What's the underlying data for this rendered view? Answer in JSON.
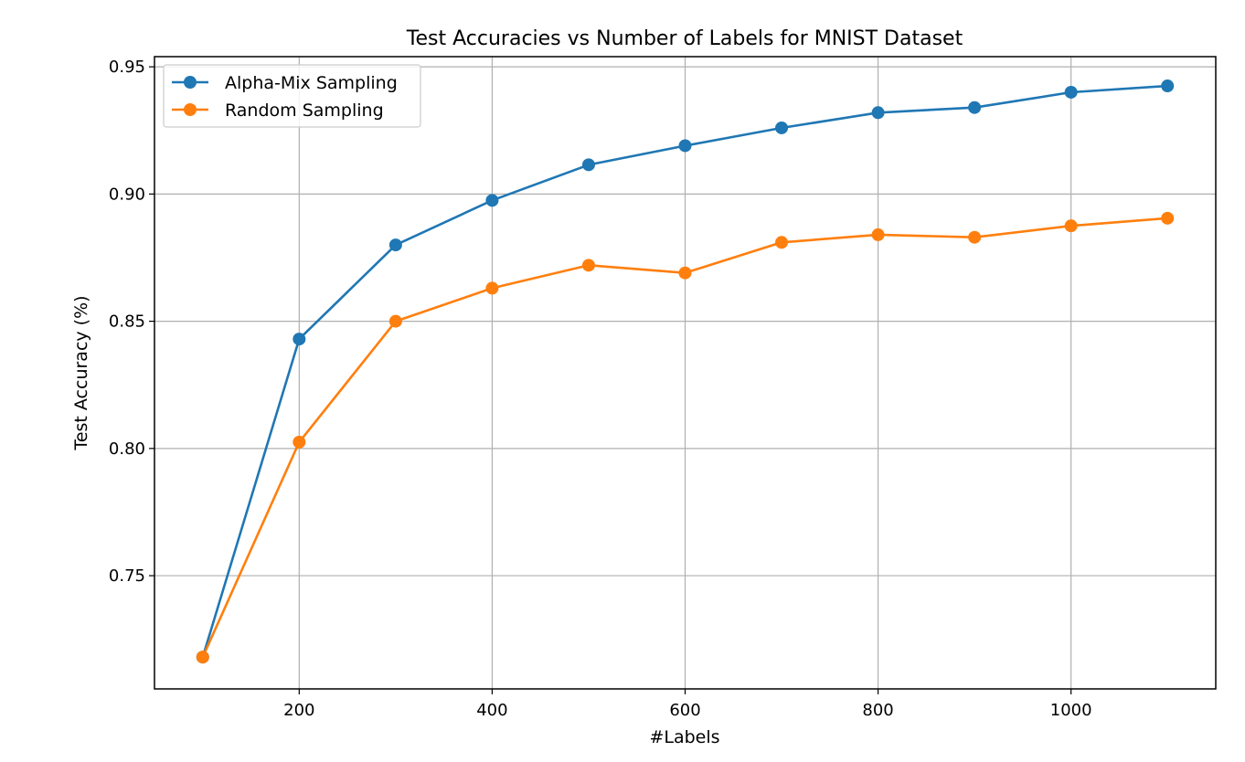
{
  "chart_data": {
    "type": "line",
    "title": "Test Accuracies vs Number of Labels for MNIST Dataset",
    "xlabel": "#Labels",
    "ylabel": "Test Accuracy (%)",
    "x": [
      100,
      200,
      300,
      400,
      500,
      600,
      700,
      800,
      900,
      1000,
      1100
    ],
    "xlim": [
      50,
      1150
    ],
    "ylim": [
      0.7055,
      0.954
    ],
    "xticks": [
      200,
      400,
      600,
      800,
      1000
    ],
    "yticks": [
      0.75,
      0.8,
      0.85,
      0.9,
      0.95
    ],
    "grid": true,
    "legend_position": "top-left",
    "series": [
      {
        "name": "Alpha-Mix Sampling",
        "color": "#1f77b4",
        "marker": "circle",
        "values": [
          0.718,
          0.843,
          0.88,
          0.8975,
          0.9115,
          0.919,
          0.926,
          0.932,
          0.934,
          0.94,
          0.9425
        ]
      },
      {
        "name": "Random Sampling",
        "color": "#ff7f0e",
        "marker": "circle",
        "values": [
          0.718,
          0.8025,
          0.85,
          0.863,
          0.872,
          0.869,
          0.881,
          0.884,
          0.883,
          0.8875,
          0.8905
        ]
      }
    ]
  }
}
